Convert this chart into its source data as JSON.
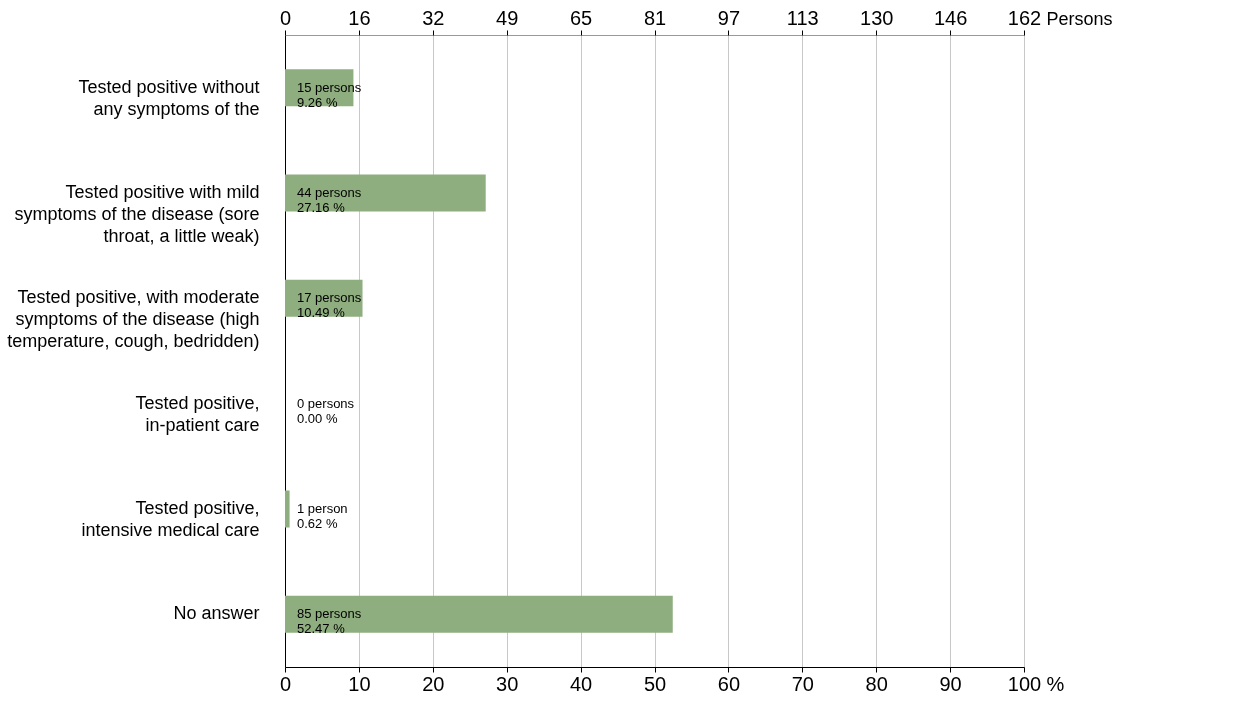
{
  "chart_data": {
    "type": "bar",
    "orientation": "horizontal",
    "categories": [
      "Tested positive without\nany symptoms of the",
      "Tested positive with mild\nsymptoms of the disease (sore\nthroat, a little weak)",
      "Tested positive, with moderate\nsymptoms of the disease (high\ntemperature, cough, bedridden)",
      "Tested positive,\nin-patient care",
      "Tested positive,\nintensive medical care",
      "No answer"
    ],
    "values": [
      9.26,
      27.16,
      10.49,
      0,
      0.62,
      52.47
    ],
    "value_labels": [
      "15 persons\n9.26 %",
      "44 persons\n27.16 %",
      "17 persons\n10.49 %",
      "0 persons\n0.00 %",
      "1 person\n0.62 %",
      "85 persons\n52.47 %"
    ],
    "color": "#8fae7f",
    "xlim": [
      0,
      100
    ],
    "xticks": [
      0,
      10,
      20,
      30,
      40,
      50,
      60,
      70,
      80,
      90,
      100
    ],
    "xlabel": "%",
    "x2lim": [
      0,
      162
    ],
    "x2ticks": [
      0,
      {
        "value": 16.2,
        "label": "16"
      },
      {
        "value": 32.4,
        "label": "32"
      },
      {
        "value": 48.6,
        "label": "49"
      },
      {
        "value": 64.8,
        "label": "65"
      },
      {
        "value": 81,
        "label": "81"
      },
      {
        "value": 97.2,
        "label": "97"
      },
      {
        "value": 113.4,
        "label": "113"
      },
      {
        "value": 129.6,
        "label": "130"
      },
      {
        "value": 145.8,
        "label": "146"
      },
      {
        "value": 162,
        "label": "162"
      }
    ],
    "x2label": "Persons",
    "grid": "x"
  }
}
